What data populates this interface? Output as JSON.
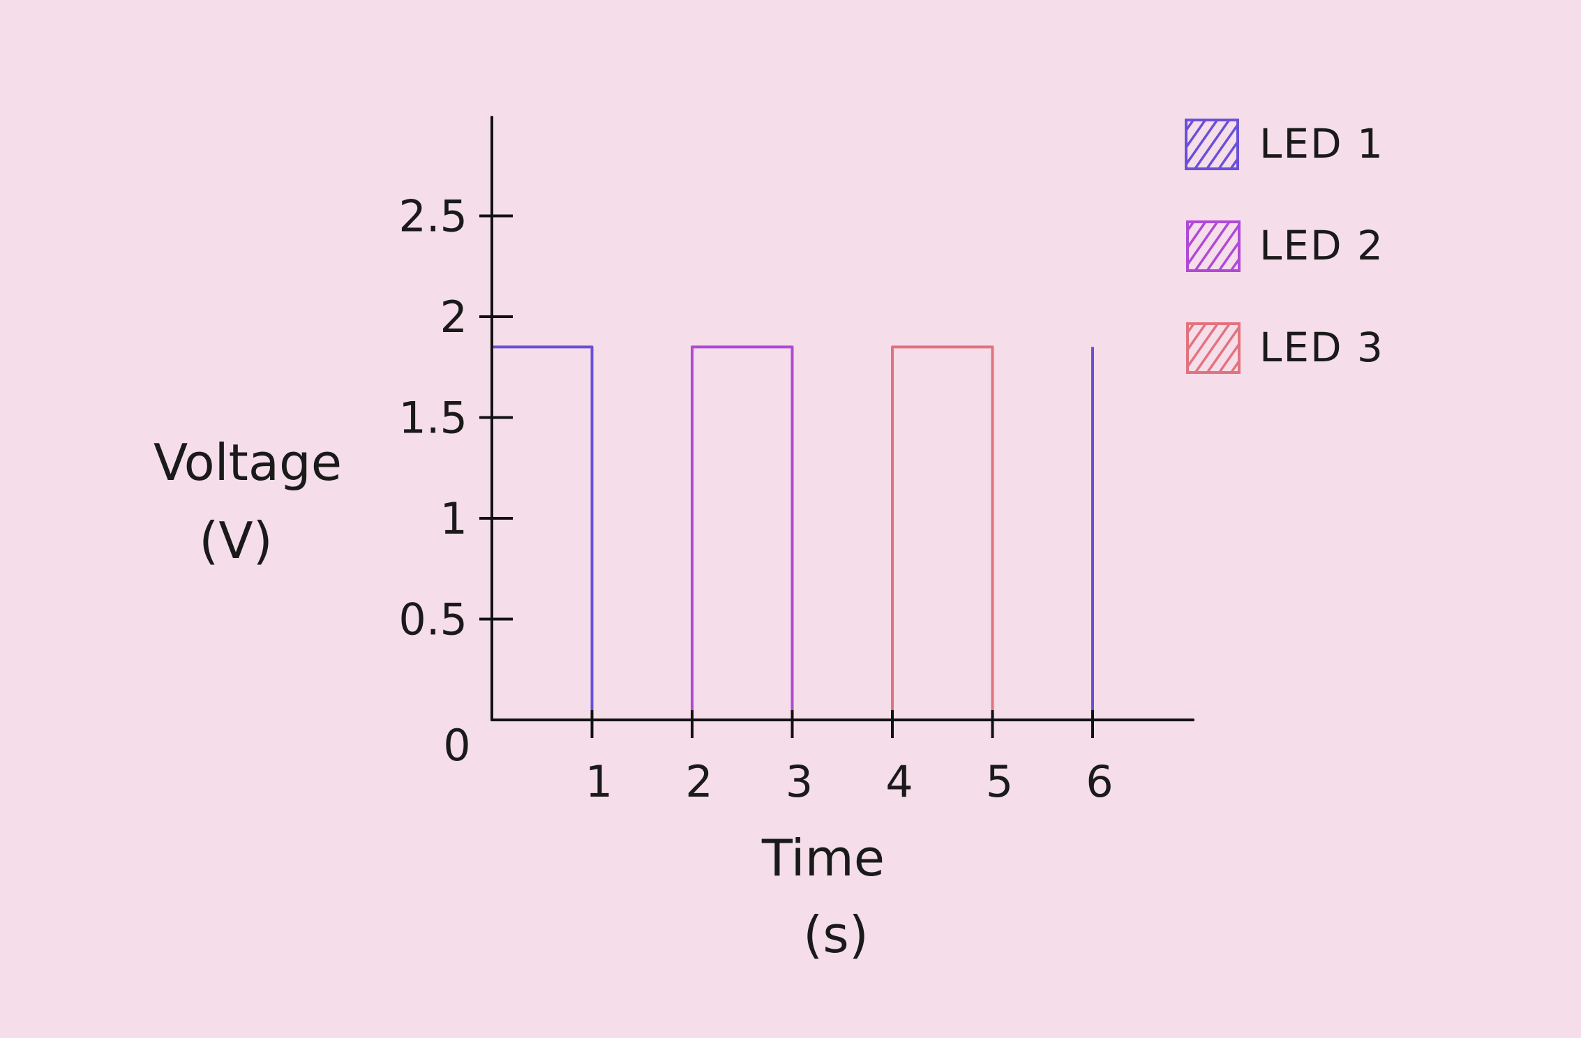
{
  "colors": {
    "background": "#f5dde9",
    "axis": "#111111",
    "led1": "#6a50d8",
    "led2": "#b049d6",
    "led3": "#e2737e"
  },
  "chart_data": {
    "type": "line",
    "step": true,
    "ylabel_line1": "Voltage",
    "ylabel_line2": "(V)",
    "xlabel_line1": "Time",
    "xlabel_line2": "(s)",
    "xlim": [
      0,
      7
    ],
    "ylim": [
      0,
      3
    ],
    "x_ticks": [
      {
        "value": 1,
        "label": "1"
      },
      {
        "value": 2,
        "label": "2"
      },
      {
        "value": 3,
        "label": "3"
      },
      {
        "value": 4,
        "label": "4"
      },
      {
        "value": 5,
        "label": "5"
      },
      {
        "value": 6,
        "label": "6"
      }
    ],
    "y_ticks": [
      {
        "value": 0.5,
        "label": "0.5"
      },
      {
        "value": 1,
        "label": "1"
      },
      {
        "value": 1.5,
        "label": "1.5"
      },
      {
        "value": 2,
        "label": "2"
      },
      {
        "value": 2.5,
        "label": "2.5"
      }
    ],
    "origin_label": "0",
    "legend_position": "top-right",
    "series": [
      {
        "name": "LED 1",
        "color_key": "led1",
        "points": [
          [
            0,
            1.85
          ],
          [
            1,
            1.85
          ],
          [
            1,
            0
          ],
          [
            6,
            0
          ],
          [
            6,
            1.85
          ]
        ]
      },
      {
        "name": "LED 2",
        "color_key": "led2",
        "points": [
          [
            0,
            0
          ],
          [
            2,
            0
          ],
          [
            2,
            1.85
          ],
          [
            3,
            1.85
          ],
          [
            3,
            0
          ],
          [
            6,
            0
          ]
        ]
      },
      {
        "name": "LED 3",
        "color_key": "led3",
        "points": [
          [
            0,
            0
          ],
          [
            4,
            0
          ],
          [
            4,
            1.85
          ],
          [
            5,
            1.85
          ],
          [
            5,
            0
          ],
          [
            6,
            0
          ]
        ]
      }
    ]
  }
}
